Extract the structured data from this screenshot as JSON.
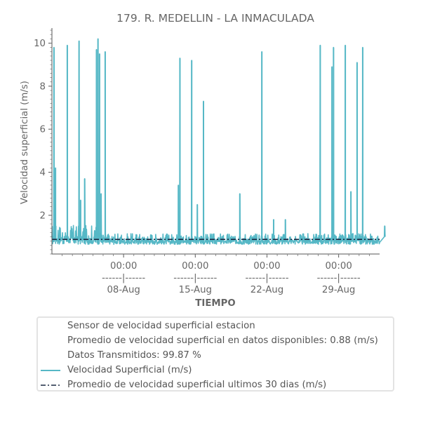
{
  "chart_data": {
    "type": "line",
    "title": "179. R. MEDELLIN - LA INMACULADA",
    "xlabel": "TIEMPO",
    "ylabel": "Velocidad superficial (m/s)",
    "x_range": [
      "2023-08-01",
      "2023-09-02"
    ],
    "ylim": [
      0.2,
      10.7
    ],
    "y_ticks": [
      2,
      4,
      6,
      8,
      10
    ],
    "x_ticks": [
      {
        "date": "2023-08-08",
        "time": "00:00",
        "sep": "------|------",
        "label": "08-Aug"
      },
      {
        "date": "2023-08-15",
        "time": "00:00",
        "sep": "------|------",
        "label": "15-Aug"
      },
      {
        "date": "2023-08-22",
        "time": "00:00",
        "sep": "------|------",
        "label": "22-Aug"
      },
      {
        "date": "2023-08-29",
        "time": "00:00",
        "sep": "------|------",
        "label": "29-Aug"
      }
    ],
    "grid": false,
    "legend_placement": "bottom",
    "series": [
      {
        "name": "Velocidad Superficial (m/s)",
        "color": "#56b8c6",
        "baseline_band": [
          0.6,
          1.6
        ],
        "spikes": [
          {
            "x": "2023-08-01",
            "y": 9.8
          },
          {
            "x": "2023-08-01",
            "y": 4.2
          },
          {
            "x": "2023-08-02",
            "y": 9.9
          },
          {
            "x": "2023-08-03",
            "y": 10.1
          },
          {
            "x": "2023-08-03",
            "y": 2.7
          },
          {
            "x": "2023-08-04",
            "y": 3.7
          },
          {
            "x": "2023-08-05",
            "y": 9.7
          },
          {
            "x": "2023-08-05",
            "y": 10.2
          },
          {
            "x": "2023-08-05",
            "y": 9.5
          },
          {
            "x": "2023-08-05",
            "y": 3.0
          },
          {
            "x": "2023-08-06",
            "y": 9.6
          },
          {
            "x": "2023-08-13",
            "y": 3.4
          },
          {
            "x": "2023-08-13",
            "y": 9.3
          },
          {
            "x": "2023-08-14",
            "y": 9.2
          },
          {
            "x": "2023-08-15",
            "y": 7.3
          },
          {
            "x": "2023-08-15",
            "y": 2.5
          },
          {
            "x": "2023-08-19",
            "y": 3.0
          },
          {
            "x": "2023-08-21",
            "y": 9.6
          },
          {
            "x": "2023-08-22",
            "y": 1.8
          },
          {
            "x": "2023-08-23",
            "y": 1.8
          },
          {
            "x": "2023-08-27",
            "y": 9.9
          },
          {
            "x": "2023-08-28",
            "y": 8.9
          },
          {
            "x": "2023-08-28",
            "y": 9.8
          },
          {
            "x": "2023-08-29",
            "y": 9.9
          },
          {
            "x": "2023-08-30",
            "y": 9.1
          },
          {
            "x": "2023-08-30",
            "y": 3.1
          },
          {
            "x": "2023-08-31",
            "y": 9.8
          },
          {
            "x": "2023-09-02",
            "y": 1.5
          }
        ]
      },
      {
        "name": "Promedio de velocidad superficial ultimos 30 dias (m/s)",
        "color": "#1b2a44",
        "style": "dashdot",
        "value": 0.88
      }
    ]
  },
  "legend": {
    "line1": "Sensor de velocidad superficial estacion",
    "line2": "Promedio de velocidad superficial en datos disponibles: 0.88 (m/s)",
    "line3": "Datos Transmitidos: 99.87 %",
    "line4": "Velocidad Superficial (m/s)",
    "line5": "Promedio de velocidad superficial ultimos 30 dias (m/s)"
  }
}
